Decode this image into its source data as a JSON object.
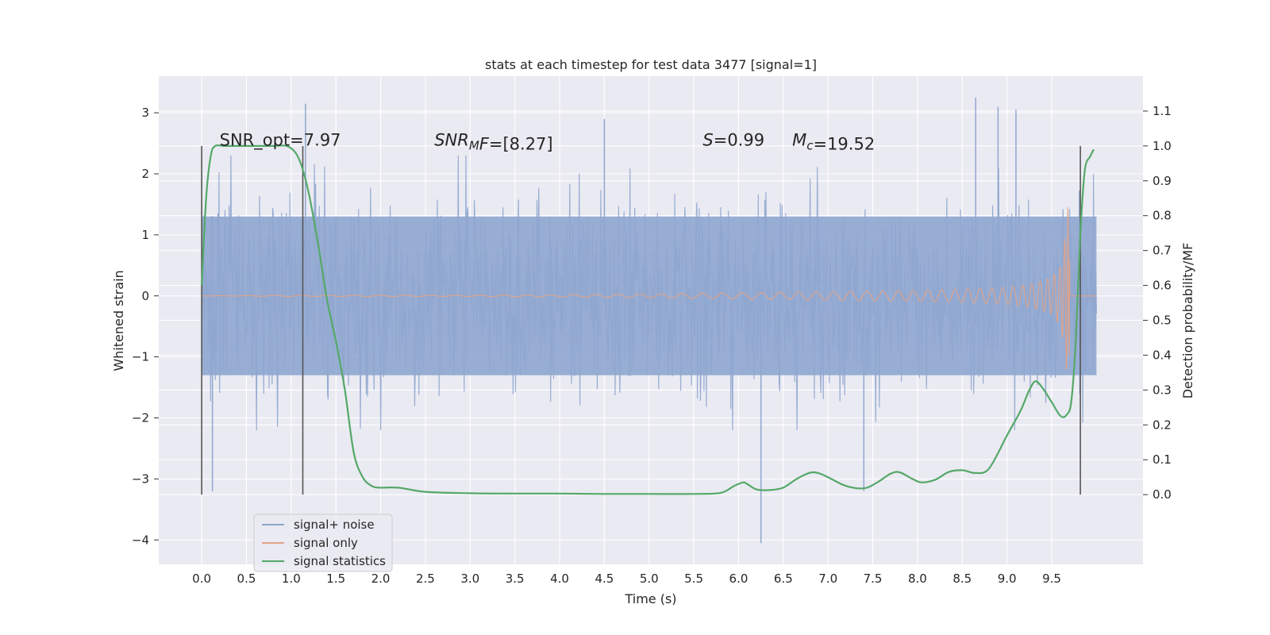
{
  "chart_data": {
    "type": "line",
    "title": "stats at each timestep for test data 3477 [signal=1]",
    "xlabel": "Time (s)",
    "ylabel": "Whitened strain",
    "ylabel_right": "Detection probability/MF",
    "xlim": [
      -0.48,
      10.52
    ],
    "ylim": [
      -4.4,
      3.6
    ],
    "ylim_right": [
      -0.2,
      1.2
    ],
    "grid": true,
    "x_ticks": [
      "0.0",
      "0.5",
      "1.0",
      "1.5",
      "2.0",
      "2.5",
      "3.0",
      "3.5",
      "4.0",
      "4.5",
      "5.0",
      "5.5",
      "6.0",
      "6.5",
      "7.0",
      "7.5",
      "8.0",
      "8.5",
      "9.0",
      "9.5"
    ],
    "y_ticks": [
      {
        "value": 3,
        "label": "3"
      },
      {
        "value": 2,
        "label": "2"
      },
      {
        "value": 1,
        "label": "1"
      },
      {
        "value": 0,
        "label": "0"
      },
      {
        "value": -1,
        "label": "−1"
      },
      {
        "value": -2,
        "label": "−2"
      },
      {
        "value": -3,
        "label": "−3"
      },
      {
        "value": -4,
        "label": "−4"
      }
    ],
    "y_ticks_right": [
      "0.0",
      "0.1",
      "0.2",
      "0.3",
      "0.4",
      "0.5",
      "0.6",
      "0.7",
      "0.8",
      "0.9",
      "1.0",
      "1.1"
    ],
    "annotations": [
      {
        "x": 0.2,
        "y": 2.55,
        "parts": [
          {
            "text": "SNR_opt=7.97",
            "italic": false
          }
        ]
      },
      {
        "x": 2.6,
        "y": 2.55,
        "parts": [
          {
            "text": "SNR",
            "italic": true
          },
          {
            "text": "M",
            "italic": true,
            "sub": true
          },
          {
            "text": "F",
            "italic": true
          },
          {
            "text": "=[8.27]",
            "italic": false
          }
        ]
      },
      {
        "x": 5.6,
        "y": 2.55,
        "parts": [
          {
            "text": "S",
            "italic": true
          },
          {
            "text": "=0.99",
            "italic": false
          }
        ]
      },
      {
        "x": 6.6,
        "y": 2.55,
        "parts": [
          {
            "text": "M",
            "italic": true
          },
          {
            "text": "c",
            "italic": true,
            "sub": true
          },
          {
            "text": "=19.52",
            "italic": false
          }
        ]
      }
    ],
    "vertical_lines": [
      {
        "x": 0.0,
        "ymin": 0.0,
        "ymax": 1.0
      },
      {
        "x": 1.13,
        "ymin": 0.0,
        "ymax": 1.0
      },
      {
        "x": 9.82,
        "ymin": 0.0,
        "ymax": 1.0
      }
    ],
    "series": [
      {
        "name": "signal+ noise",
        "color": "#8FA6CF",
        "axis": "left",
        "x_range": [
          0.0,
          10.0
        ],
        "envelope": {
          "core": [
            -1.3,
            1.3
          ],
          "typical_spike_top": 2.3,
          "typical_spike_bottom": -2.2,
          "peak_spikes": [
            {
              "x": 0.12,
              "y": -3.2
            },
            {
              "x": 1.16,
              "y": 3.15
            },
            {
              "x": 4.5,
              "y": 2.9
            },
            {
              "x": 6.25,
              "y": -4.05
            },
            {
              "x": 7.4,
              "y": -3.2
            },
            {
              "x": 8.65,
              "y": 3.25
            },
            {
              "x": 8.9,
              "y": 3.1
            },
            {
              "x": 9.1,
              "y": 3.05
            }
          ]
        }
      },
      {
        "name": "signal only",
        "color": "#E0A48A",
        "axis": "left",
        "x": [
          0.0,
          1.0,
          2.0,
          3.0,
          4.0,
          5.0,
          6.0,
          7.0,
          8.0,
          8.5,
          9.0,
          9.3,
          9.5,
          9.6,
          9.65,
          9.68,
          9.72,
          10.0
        ],
        "amplitude": [
          0.0,
          0.01,
          0.01,
          0.01,
          0.02,
          0.03,
          0.05,
          0.07,
          0.09,
          0.11,
          0.14,
          0.2,
          0.3,
          0.5,
          1.0,
          1.5,
          0.0,
          0.0
        ]
      },
      {
        "name": "signal statistics",
        "color": "#55A868",
        "axis": "right",
        "x": [
          0.0,
          0.05,
          0.1,
          0.15,
          0.25,
          0.4,
          0.6,
          0.8,
          0.95,
          1.05,
          1.12,
          1.2,
          1.3,
          1.4,
          1.5,
          1.6,
          1.7,
          1.8,
          1.9,
          2.0,
          2.2,
          2.5,
          3.0,
          3.5,
          4.0,
          4.5,
          5.0,
          5.5,
          5.8,
          5.95,
          6.05,
          6.1,
          6.2,
          6.35,
          6.5,
          6.65,
          6.8,
          6.9,
          7.0,
          7.2,
          7.4,
          7.55,
          7.7,
          7.8,
          7.95,
          8.05,
          8.2,
          8.35,
          8.5,
          8.65,
          8.8,
          9.0,
          9.15,
          9.25,
          9.32,
          9.4,
          9.5,
          9.6,
          9.67,
          9.72,
          9.77,
          9.82,
          9.87,
          9.93,
          9.97
        ],
        "y": [
          0.6,
          0.85,
          0.97,
          1.0,
          1.0,
          1.0,
          1.0,
          1.0,
          1.0,
          0.98,
          0.94,
          0.86,
          0.72,
          0.56,
          0.44,
          0.3,
          0.12,
          0.05,
          0.025,
          0.02,
          0.02,
          0.008,
          0.004,
          0.003,
          0.003,
          0.002,
          0.002,
          0.002,
          0.005,
          0.025,
          0.035,
          0.03,
          0.015,
          0.013,
          0.02,
          0.045,
          0.063,
          0.061,
          0.05,
          0.025,
          0.018,
          0.035,
          0.06,
          0.064,
          0.044,
          0.035,
          0.043,
          0.065,
          0.07,
          0.062,
          0.075,
          0.17,
          0.24,
          0.3,
          0.325,
          0.305,
          0.265,
          0.225,
          0.23,
          0.27,
          0.45,
          0.75,
          0.93,
          0.97,
          0.99
        ]
      }
    ],
    "legend": {
      "position": "lower-left",
      "entries": [
        "signal+ noise",
        "signal only",
        "signal statistics"
      ]
    }
  }
}
